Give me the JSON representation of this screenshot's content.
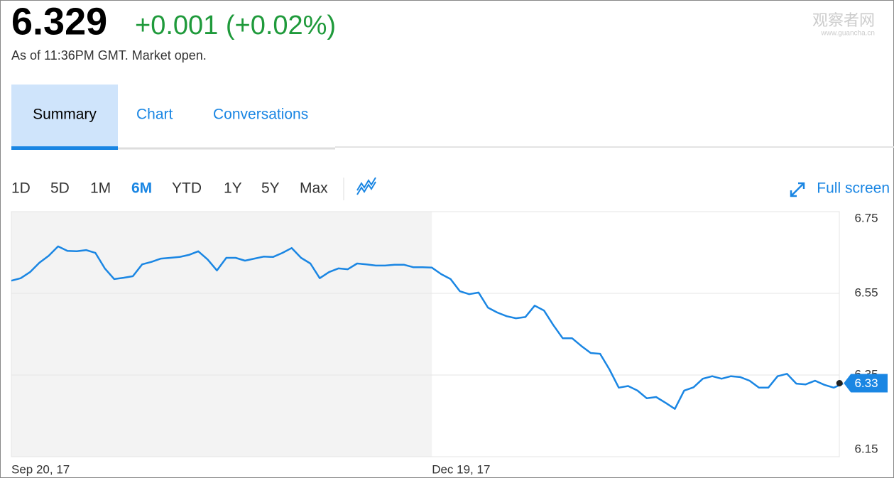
{
  "header": {
    "price": "6.329",
    "change": "+0.001 (+0.02%)",
    "status": "As of 11:36PM GMT. Market open."
  },
  "watermark": {
    "title": "观察者网",
    "url": "www.guancha.cn"
  },
  "tabs": {
    "items": [
      "Summary",
      "Chart",
      "Conversations"
    ],
    "active": 0
  },
  "ranges": {
    "items": [
      "1D",
      "5D",
      "1M",
      "6M",
      "YTD",
      "1Y",
      "5Y",
      "Max"
    ],
    "active": 3
  },
  "full_screen": "Full screen",
  "chart_data": {
    "type": "line",
    "color": "#1a86e3",
    "categories": [
      "Sep 20, 17",
      null,
      null,
      null,
      null,
      null,
      null,
      null,
      null,
      null,
      null,
      null,
      null,
      null,
      null,
      null,
      null,
      null,
      null,
      null,
      null,
      null,
      null,
      null,
      null,
      null,
      null,
      null,
      null,
      null,
      null,
      null,
      null,
      null,
      null,
      null,
      null,
      null,
      null,
      null,
      null,
      null,
      null,
      null,
      null,
      "Dec 19, 17",
      null,
      null,
      null,
      null,
      null,
      null,
      null,
      null,
      null,
      null,
      null,
      null,
      null,
      null,
      null,
      null,
      null,
      null,
      null,
      null,
      null,
      null,
      null,
      null,
      null,
      null,
      null,
      null,
      null,
      null,
      null,
      null,
      null,
      null,
      null,
      null,
      null,
      null,
      null,
      null,
      null,
      null,
      null,
      null
    ],
    "values": [
      6.581,
      6.587,
      6.602,
      6.625,
      6.642,
      6.665,
      6.654,
      6.653,
      6.656,
      6.649,
      6.611,
      6.585,
      6.588,
      6.592,
      6.621,
      6.627,
      6.635,
      6.637,
      6.639,
      6.644,
      6.653,
      6.633,
      6.606,
      6.637,
      6.637,
      6.63,
      6.635,
      6.64,
      6.639,
      6.649,
      6.661,
      6.637,
      6.623,
      6.587,
      6.602,
      6.611,
      6.609,
      6.623,
      6.621,
      6.618,
      6.618,
      6.62,
      6.62,
      6.614,
      6.614,
      6.613,
      6.597,
      6.585,
      6.555,
      6.548,
      6.552,
      6.515,
      6.503,
      6.494,
      6.489,
      6.492,
      6.52,
      6.508,
      6.472,
      6.44,
      6.44,
      6.421,
      6.404,
      6.402,
      6.364,
      6.319,
      6.323,
      6.312,
      6.293,
      6.296,
      6.282,
      6.267,
      6.312,
      6.32,
      6.341,
      6.347,
      6.341,
      6.347,
      6.345,
      6.336,
      6.319,
      6.319,
      6.347,
      6.353,
      6.329,
      6.327,
      6.336,
      6.326,
      6.319,
      6.329
    ],
    "ylim": [
      6.15,
      6.75
    ],
    "yticks": [
      6.15,
      6.35,
      6.55,
      6.75
    ],
    "grid": true,
    "current": 6.33
  }
}
